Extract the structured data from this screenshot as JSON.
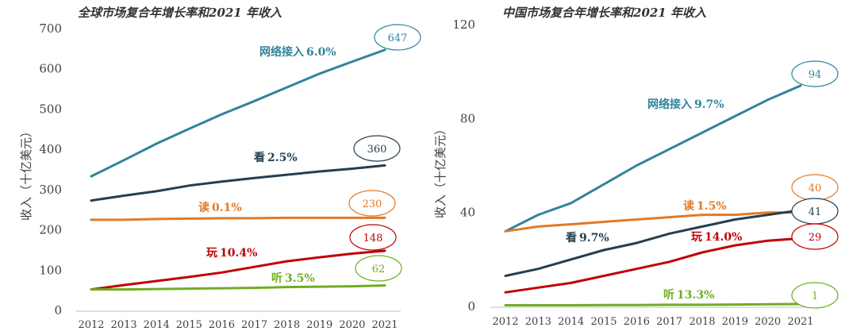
{
  "chart_data": [
    {
      "type": "line",
      "title": "全球市场复合年增长率和2021 年收入",
      "ylabel": "收入（十亿美元）",
      "x": [
        "2012",
        "2013",
        "2014",
        "2015",
        "2016",
        "2017",
        "2018",
        "2019",
        "2020",
        "2021"
      ],
      "ylim": [
        0,
        700
      ],
      "yticks": [
        "0",
        "100",
        "200",
        "300",
        "400",
        "500",
        "600",
        "700"
      ],
      "grid": false,
      "series": [
        {
          "name": "网络接入",
          "cagr": "6.0%",
          "color": "#31849b",
          "values": [
            333,
            373,
            414,
            451,
            487,
            520,
            554,
            588,
            618,
            647
          ],
          "end_label": "647"
        },
        {
          "name": "看",
          "cagr": "2.5%",
          "color": "#243f4f",
          "values": [
            273,
            285,
            296,
            310,
            320,
            329,
            337,
            345,
            352,
            360
          ],
          "end_label": "360"
        },
        {
          "name": "读",
          "cagr": "0.1%",
          "color": "#e07a27",
          "values": [
            225,
            225,
            227,
            228,
            229,
            229,
            230,
            230,
            230,
            230
          ],
          "end_label": "230"
        },
        {
          "name": "玩",
          "cagr": "10.4%",
          "color": "#c00000",
          "values": [
            52,
            63,
            73,
            83,
            94,
            108,
            122,
            132,
            141,
            148
          ],
          "end_label": "148"
        },
        {
          "name": "听",
          "cagr": "3.5%",
          "color": "#70ad22",
          "values": [
            52,
            52,
            53,
            54,
            55,
            56,
            58,
            59,
            60,
            62
          ],
          "end_label": "62"
        }
      ]
    },
    {
      "type": "line",
      "title": "中国市场复合年增长率和2021 年收入",
      "ylabel": "收入（十亿美元）",
      "x": [
        "2012",
        "2013",
        "2014",
        "2015",
        "2016",
        "2017",
        "2018",
        "2019",
        "2020",
        "2021"
      ],
      "ylim": [
        0,
        120
      ],
      "yticks": [
        "0",
        "40",
        "80",
        "120"
      ],
      "grid": false,
      "series": [
        {
          "name": "网络接入",
          "cagr": "9.7%",
          "color": "#31849b",
          "values": [
            32,
            39,
            44,
            52,
            60,
            67,
            74,
            81,
            88,
            94
          ],
          "end_label": "94"
        },
        {
          "name": "读",
          "cagr": "1.5%",
          "color": "#e07a27",
          "values": [
            32,
            34,
            35,
            36,
            37,
            38,
            39,
            39,
            40,
            40
          ],
          "end_label": "40"
        },
        {
          "name": "看",
          "cagr": "9.7%",
          "color": "#243f4f",
          "values": [
            13,
            16,
            20,
            24,
            27,
            31,
            34,
            37,
            39,
            41
          ],
          "end_label": "41"
        },
        {
          "name": "玩",
          "cagr": "14.0%",
          "color": "#c00000",
          "values": [
            6,
            8,
            10,
            13,
            16,
            19,
            23,
            26,
            28,
            29
          ],
          "end_label": "29"
        },
        {
          "name": "听",
          "cagr": "13.3%",
          "color": "#70ad22",
          "values": [
            0.5,
            0.5,
            0.5,
            0.6,
            0.6,
            0.7,
            0.7,
            0.8,
            0.9,
            1
          ],
          "end_label": "1"
        }
      ]
    }
  ]
}
